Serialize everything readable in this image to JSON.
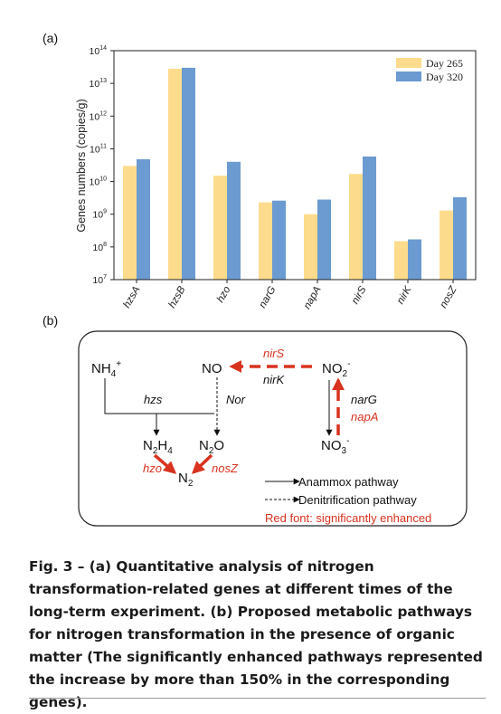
{
  "panels": {
    "a": "(a)",
    "b": "(b)"
  },
  "chart_data": {
    "type": "bar",
    "ylabel": "Genes numbers (copies/g)",
    "yscale": "log",
    "ylim": [
      10000000,
      100000000000000
    ],
    "yticks": [
      {
        "value": 10000000,
        "label": "10",
        "exp": "7"
      },
      {
        "value": 100000000,
        "label": "10",
        "exp": "8"
      },
      {
        "value": 1000000000,
        "label": "10",
        "exp": "9"
      },
      {
        "value": 10000000000,
        "label": "10",
        "exp": "10"
      },
      {
        "value": 100000000000,
        "label": "10",
        "exp": "11"
      },
      {
        "value": 1000000000000,
        "label": "10",
        "exp": "12"
      },
      {
        "value": 10000000000000,
        "label": "10",
        "exp": "13"
      },
      {
        "value": 100000000000000,
        "label": "10",
        "exp": "14"
      }
    ],
    "categories": [
      "hzsA",
      "hzsB",
      "hzo",
      "narG",
      "napA",
      "nirS",
      "nirK",
      "nosZ"
    ],
    "series": [
      {
        "name": "Day 265",
        "color": "#fcdc8c",
        "values": [
          30000000000,
          28000000000000,
          15000000000,
          2300000000,
          1000000000,
          17000000000,
          150000000,
          1300000000
        ]
      },
      {
        "name": "Day 320",
        "color": "#6b9bd0",
        "values": [
          48000000000,
          30000000000000,
          40000000000,
          2600000000,
          2800000000,
          58000000000,
          170000000,
          3300000000
        ]
      }
    ],
    "legend_position": "top-right",
    "grid": false
  },
  "pathway": {
    "nodes": {
      "nh4": {
        "base": "NH",
        "sub": "4",
        "sup": "+"
      },
      "no": {
        "base": "NO"
      },
      "no2": {
        "base": "NO",
        "sub": "2",
        "sup": "-"
      },
      "no3": {
        "base": "NO",
        "sub": "3",
        "sup": "-"
      },
      "n2h4": {
        "base1": "N",
        "sub1": "2",
        "base2": "H",
        "sub2": "4"
      },
      "n2o": {
        "base1": "N",
        "sub1": "2",
        "base2": "O"
      },
      "n2": {
        "base": "N",
        "sub": "2"
      }
    },
    "labels": {
      "nirS": "nirS",
      "nirK": "nirK",
      "hzs": "hzs",
      "nor": "Nor",
      "narG": "narG",
      "napA": "napA",
      "hzo": "hzo",
      "nosZ": "nosZ"
    },
    "legend": {
      "anammox": "Anammox pathway",
      "denitrification": "Denitrification pathway",
      "red_note": "Red font: significantly enhanced"
    },
    "colors": {
      "enhanced": "#d9321f",
      "normal": "#111111"
    }
  },
  "caption": {
    "label": "Fig. 3 –",
    "text": " (a) Quantitative analysis of nitrogen transformation-related genes at different times of the long-term experiment. (b) Proposed metabolic pathways for nitrogen transformation in the presence of organic matter (The significantly enhanced pathways represented the increase by more than 150% in the corresponding genes)."
  }
}
